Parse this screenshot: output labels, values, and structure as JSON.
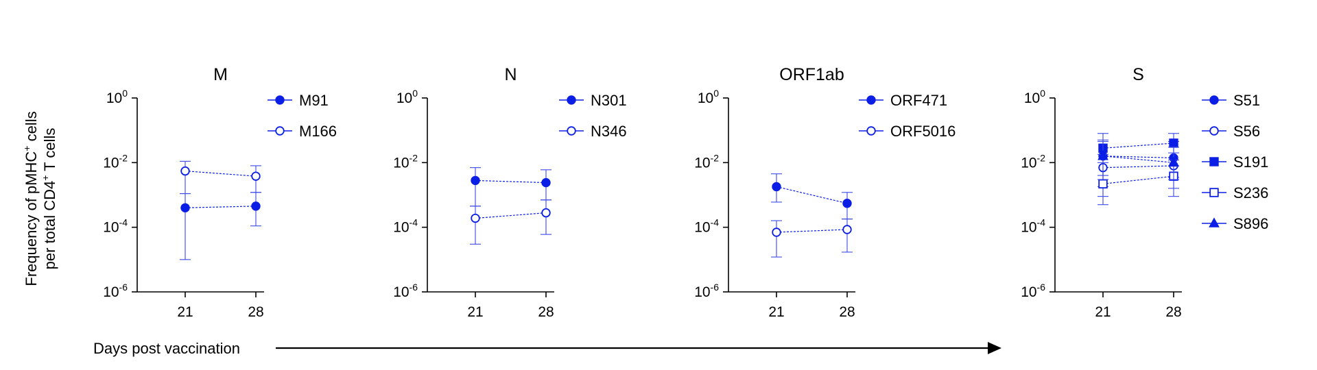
{
  "figure": {
    "ylabel_line1": "Frequency of pMHC",
    "ylabel_line1_sup": "+",
    "ylabel_line1_end": " cells",
    "ylabel_line2": "per total CD4",
    "ylabel_line2_sup": "+",
    "ylabel_line2_end": " T cells",
    "xlabel": "Days post vaccination",
    "y_tick_base": "10",
    "y_tick_exponents": [
      "0",
      "-2",
      "-4",
      "-6"
    ],
    "x_tick_labels": [
      "21",
      "28"
    ],
    "colors": {
      "series": "#0b1ee6",
      "error": "#3a48e8",
      "axis": "#000000"
    }
  },
  "chart_data": [
    {
      "type": "line",
      "title": "M",
      "x": [
        21,
        28
      ],
      "yscale": "log",
      "ylim": [
        1e-06,
        1
      ],
      "series": [
        {
          "name": "M91",
          "marker": "filled-circle",
          "values": [
            0.0004,
            0.00045
          ],
          "err_low": [
            1e-05,
            0.00011
          ],
          "err_high": [
            0.0011,
            0.0012
          ]
        },
        {
          "name": "M166",
          "marker": "open-circle",
          "values": [
            0.0055,
            0.0038
          ],
          "err_low": [
            0.0011,
            0.0012
          ],
          "err_high": [
            0.011,
            0.008
          ]
        }
      ]
    },
    {
      "type": "line",
      "title": "N",
      "x": [
        21,
        28
      ],
      "yscale": "log",
      "ylim": [
        1e-06,
        1
      ],
      "series": [
        {
          "name": "N301",
          "marker": "filled-circle",
          "values": [
            0.0028,
            0.0024
          ],
          "err_low": [
            0.00045,
            0.0007
          ],
          "err_high": [
            0.007,
            0.006
          ]
        },
        {
          "name": "N346",
          "marker": "open-circle",
          "values": [
            0.00019,
            0.00028
          ],
          "err_low": [
            3e-05,
            6e-05
          ],
          "err_high": [
            0.00045,
            0.0007
          ]
        }
      ]
    },
    {
      "type": "line",
      "title": "ORF1ab",
      "x": [
        21,
        28
      ],
      "yscale": "log",
      "ylim": [
        1e-06,
        1
      ],
      "series": [
        {
          "name": "ORF471",
          "marker": "filled-circle",
          "values": [
            0.0018,
            0.00055
          ],
          "err_low": [
            0.0006,
            0.00018
          ],
          "err_high": [
            0.0045,
            0.0012
          ]
        },
        {
          "name": "ORF5016",
          "marker": "open-circle",
          "values": [
            7e-05,
            8.5e-05
          ],
          "err_low": [
            1.2e-05,
            1.7e-05
          ],
          "err_high": [
            0.00016,
            0.00018
          ]
        }
      ]
    },
    {
      "type": "line",
      "title": "S",
      "x": [
        21,
        28
      ],
      "yscale": "log",
      "ylim": [
        1e-06,
        1
      ],
      "series": [
        {
          "name": "S51",
          "marker": "filled-circle",
          "values": [
            0.016,
            0.014
          ],
          "err_low": [
            0.0018,
            0.0035
          ],
          "err_high": [
            0.05,
            0.045
          ]
        },
        {
          "name": "S56",
          "marker": "open-circle",
          "values": [
            0.007,
            0.008
          ],
          "err_low": [
            0.0009,
            0.0016
          ],
          "err_high": [
            0.018,
            0.02
          ]
        },
        {
          "name": "S191",
          "marker": "filled-square",
          "values": [
            0.028,
            0.04
          ],
          "err_low": [
            0.004,
            0.008
          ],
          "err_high": [
            0.08,
            0.08
          ]
        },
        {
          "name": "S236",
          "marker": "open-square",
          "values": [
            0.0022,
            0.0038
          ],
          "err_low": [
            0.0005,
            0.0009
          ],
          "err_high": [
            0.01,
            0.012
          ]
        },
        {
          "name": "S896",
          "marker": "filled-triangle",
          "values": [
            0.016,
            0.01
          ],
          "err_low": [
            0.003,
            0.003
          ],
          "err_high": [
            0.045,
            0.03
          ]
        }
      ]
    }
  ]
}
